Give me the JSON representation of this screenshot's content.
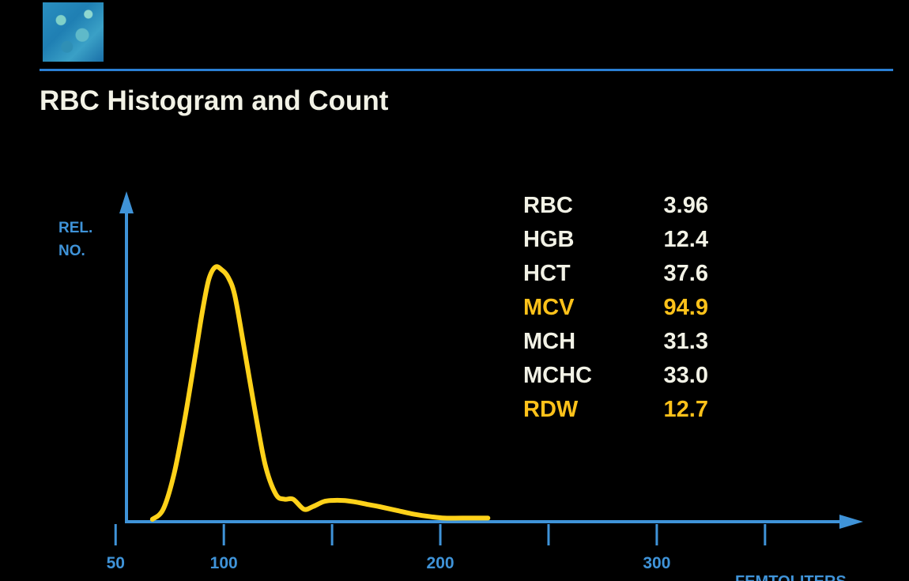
{
  "title": "RBC Histogram and Count",
  "colors": {
    "background": "#000000",
    "axis": "#3f93d8",
    "rule": "#2a7fd4",
    "curve": "#ffd21a",
    "text_white": "#f2f2e6",
    "text_highlight": "#ffc21a"
  },
  "logo_icon": "blue-mosaic-logo",
  "chart_data": {
    "type": "line",
    "title": "RBC Histogram and Count",
    "ylabel_lines": [
      "REL.",
      "NO."
    ],
    "xlabel": "FEMTOLITERS",
    "x_ticks": [
      50,
      100,
      150,
      200,
      250,
      300,
      350
    ],
    "x_tick_labels": [
      {
        "value": 50,
        "label": "50"
      },
      {
        "value": 100,
        "label": "100"
      },
      {
        "value": 200,
        "label": "200"
      },
      {
        "value": 300,
        "label": "300"
      }
    ],
    "xlim": [
      28,
      380
    ],
    "ylim": [
      0,
      1
    ],
    "grid": false,
    "series": [
      {
        "x": [
          67,
          72,
          77,
          82,
          87,
          90,
          93,
          96,
          99,
          102,
          105,
          109,
          114,
          119,
          124,
          128,
          132,
          137,
          141,
          146,
          150,
          155,
          160,
          166,
          172,
          180,
          188,
          196,
          202,
          210,
          222
        ],
        "y": [
          0.0,
          0.04,
          0.18,
          0.4,
          0.66,
          0.82,
          0.95,
          1.0,
          0.99,
          0.96,
          0.89,
          0.7,
          0.45,
          0.22,
          0.1,
          0.08,
          0.08,
          0.04,
          0.05,
          0.07,
          0.075,
          0.075,
          0.07,
          0.06,
          0.05,
          0.035,
          0.02,
          0.01,
          0.005,
          0.005,
          0.005
        ]
      }
    ]
  },
  "indices": [
    {
      "label": "RBC",
      "value": "3.96",
      "highlight": false
    },
    {
      "label": "HGB",
      "value": "12.4",
      "highlight": false
    },
    {
      "label": "HCT",
      "value": "37.6",
      "highlight": false
    },
    {
      "label": "MCV",
      "value": "94.9",
      "highlight": true
    },
    {
      "label": "MCH",
      "value": "31.3",
      "highlight": false
    },
    {
      "label": "MCHC",
      "value": "33.0",
      "highlight": false
    },
    {
      "label": "RDW",
      "value": "12.7",
      "highlight": true
    }
  ]
}
